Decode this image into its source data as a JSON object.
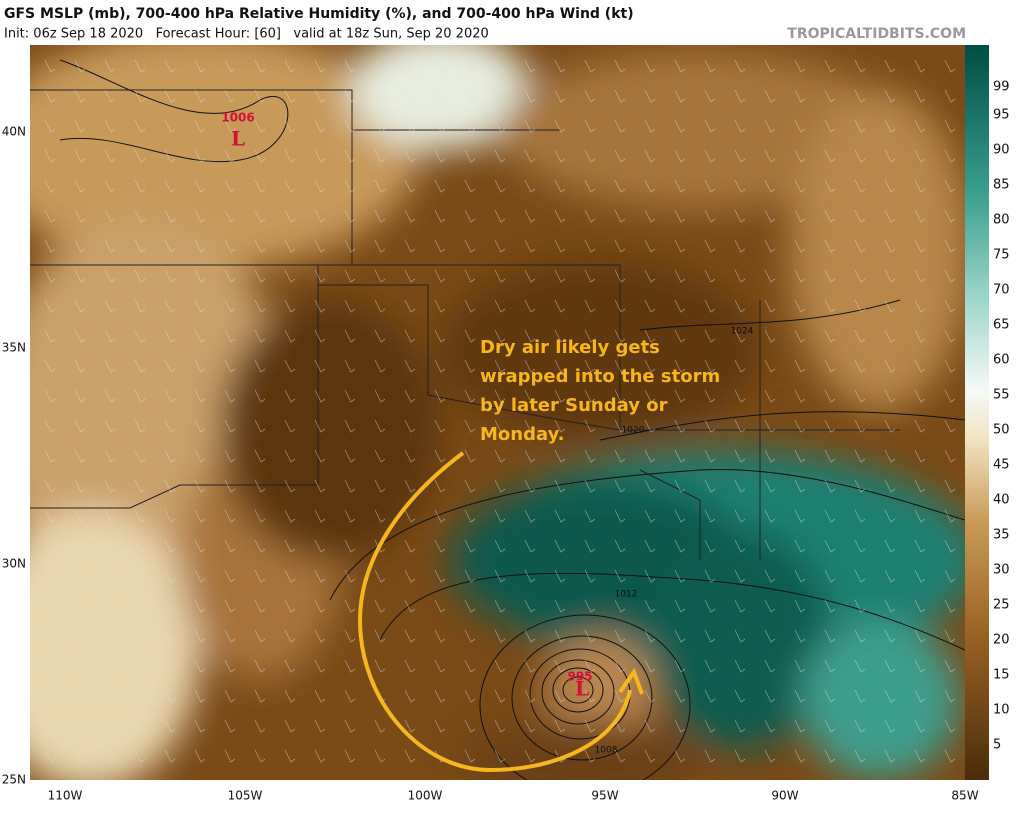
{
  "header": {
    "title": "GFS MSLP (mb), 700-400 hPa Relative Humidity (%), and 700-400 hPa Wind (kt)",
    "subtitle": "Init: 06z Sep 18 2020   Forecast Hour: [60]   valid at 18z Sun, Sep 20 2020",
    "source": "TROPICALTIDBITS.COM"
  },
  "colorbar": {
    "labels": [
      99,
      95,
      90,
      85,
      80,
      75,
      70,
      65,
      60,
      55,
      50,
      45,
      40,
      35,
      30,
      25,
      20,
      15,
      10,
      5
    ]
  },
  "map": {
    "longitudes": [
      "110W",
      "105W",
      "100W",
      "95W",
      "90W",
      "85W"
    ],
    "latitudes": [
      "40N",
      "35N",
      "30N",
      "25N"
    ],
    "pressure_labels": [
      "1024",
      "1020",
      "1012",
      "1008"
    ],
    "lows": [
      {
        "pressure": "1006",
        "symbol": "L"
      },
      {
        "pressure": "995",
        "symbol": "L"
      }
    ]
  },
  "annotation": {
    "lines": [
      "Dry air likely gets",
      "wrapped into the storm",
      "by later Sunday or",
      "Monday."
    ]
  }
}
